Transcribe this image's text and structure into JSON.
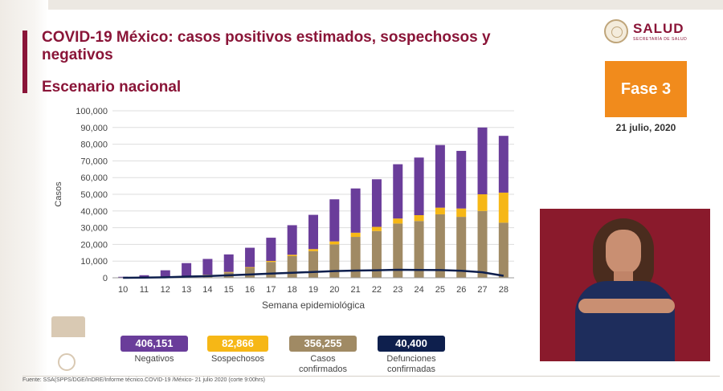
{
  "header": {
    "title": "COVID-19 México: casos positivos estimados, sospechosos y negativos",
    "subtitle": "Escenario nacional"
  },
  "logo": {
    "text": "SALUD",
    "subtext": "SECRETARÍA DE SALUD"
  },
  "phase": {
    "label": "Fase 3",
    "date": "21 julio, 2020"
  },
  "colors": {
    "negativos": "#6a3d9a",
    "sospechosos": "#f6b716",
    "confirmados": "#a08a64",
    "defunciones": "#0e1f4d",
    "brand": "#8a1538",
    "phase_box": "#f18b1c"
  },
  "chart_data": {
    "type": "bar",
    "xlabel": "Semana epidemiológica",
    "ylabel": "Casos",
    "ylim": [
      0,
      100000
    ],
    "yticks": [
      "0",
      "10,000",
      "20,000",
      "30,000",
      "40,000",
      "50,000",
      "60,000",
      "70,000",
      "80,000",
      "90,000",
      "100,000"
    ],
    "categories": [
      "10",
      "11",
      "12",
      "13",
      "14",
      "15",
      "16",
      "17",
      "18",
      "19",
      "20",
      "21",
      "22",
      "23",
      "24",
      "25",
      "26",
      "27",
      "28"
    ],
    "series": [
      {
        "name": "Casos confirmados",
        "values": [
          0,
          50,
          150,
          700,
          1600,
          3200,
          6000,
          9500,
          13000,
          16000,
          20000,
          24500,
          28000,
          32500,
          34000,
          38000,
          36500,
          40000,
          33000
        ]
      },
      {
        "name": "Sospechosos",
        "values": [
          0,
          0,
          50,
          100,
          200,
          300,
          400,
          600,
          800,
          1200,
          1800,
          2500,
          2500,
          3000,
          3500,
          4000,
          5000,
          10000,
          18000
        ]
      },
      {
        "name": "Negativos",
        "values": [
          600,
          1500,
          4300,
          8000,
          9500,
          10500,
          11600,
          13900,
          17700,
          20500,
          25200,
          26500,
          28500,
          32500,
          34500,
          37500,
          34500,
          40000,
          34000
        ]
      }
    ],
    "line": {
      "name": "Defunciones confirmadas",
      "values": [
        0,
        100,
        300,
        700,
        1000,
        1500,
        2000,
        2500,
        3000,
        3500,
        4000,
        4300,
        4500,
        4800,
        4700,
        4600,
        4200,
        3300,
        1200
      ]
    },
    "grid": true
  },
  "legend": [
    {
      "value": "406,151",
      "label": "Negativos",
      "color": "#6a3d9a"
    },
    {
      "value": "82,866",
      "label": "Sospechosos",
      "color": "#f6b716"
    },
    {
      "value": "356,255",
      "label": "Casos confirmados",
      "color": "#a08a64"
    },
    {
      "value": "40,400",
      "label": "Defunciones confirmadas",
      "color": "#0e1f4d"
    }
  ],
  "source": "Fuente: SSA(SPPS/DGE/InDRE/Informe técnico.COVID-19 /México- 21 julio 2020 (corte 9:00hrs)"
}
